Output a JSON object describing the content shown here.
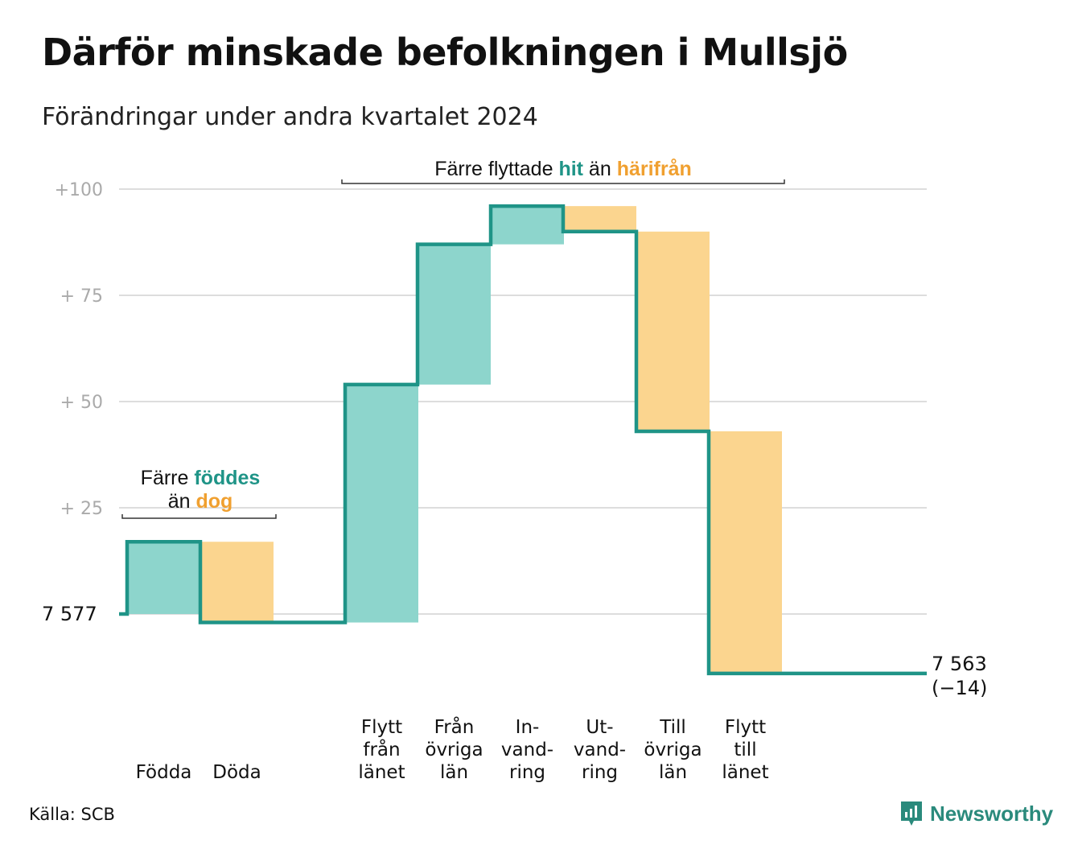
{
  "header": {
    "title": "Därför minskade befolkningen i Mullsjö",
    "subtitle": "Förändringar under andra kvartalet 2024"
  },
  "chart_data": {
    "type": "waterfall",
    "title": "Därför minskade befolkningen i Mullsjö",
    "subtitle": "Förändringar under andra kvartalet 2024",
    "start": {
      "label": "7 577",
      "value": 7577
    },
    "end": {
      "label": "7 563",
      "change_label": "(−14)",
      "value": 7563,
      "change": -14
    },
    "y_ticks": [
      "+100",
      "+  75",
      "+  50",
      "+  25"
    ],
    "y_tick_values": [
      100,
      75,
      50,
      25
    ],
    "ylim": [
      -14,
      100
    ],
    "grid": true,
    "steps": [
      {
        "label": [
          "Födda"
        ],
        "value": 17,
        "kind": "in"
      },
      {
        "label": [
          "Döda"
        ],
        "value": -19,
        "kind": "out"
      },
      {
        "label": [
          "Flytt",
          "från",
          "länet"
        ],
        "value": 56,
        "kind": "in"
      },
      {
        "label": [
          "Från",
          "övriga",
          "län"
        ],
        "value": 33,
        "kind": "in"
      },
      {
        "label": [
          "In-",
          "vand-",
          "ring"
        ],
        "value": 9,
        "kind": "in"
      },
      {
        "label": [
          "Ut-",
          "vand-",
          "ring"
        ],
        "value": -6,
        "kind": "out"
      },
      {
        "label": [
          "Till",
          "övriga",
          "län"
        ],
        "value": -47,
        "kind": "out"
      },
      {
        "label": [
          "Flytt",
          "till",
          "länet"
        ],
        "value": -57,
        "kind": "out"
      }
    ],
    "annotations": [
      {
        "id": "birth",
        "parts": [
          "Färre ",
          "föddes",
          "än ",
          "dog"
        ],
        "span": [
          0,
          1
        ]
      },
      {
        "id": "move",
        "parts": [
          "Färre flyttade ",
          "hit",
          " än ",
          "härifrån"
        ],
        "span": [
          2,
          7
        ]
      }
    ],
    "colors": {
      "in_fill": "#8dd5cc",
      "out_fill": "#fbd58f",
      "line": "#1f9487",
      "hi_in": "#1f9487",
      "hi_out": "#f0a030",
      "grid": "#dddddd",
      "tick": "#aaaaaa"
    }
  },
  "footer": {
    "source": "Källa: SCB",
    "brand": "Newsworthy"
  }
}
